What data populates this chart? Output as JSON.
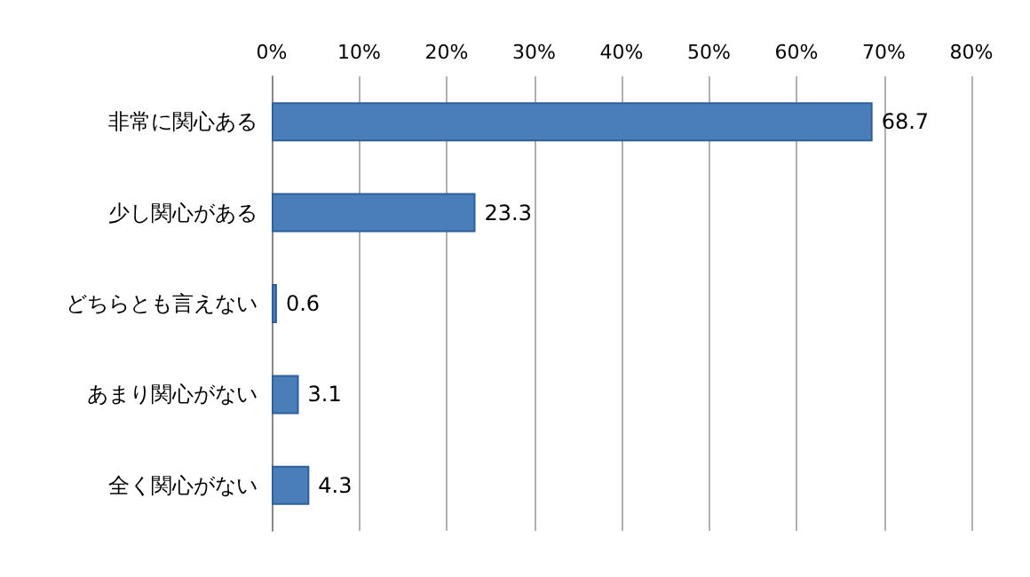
{
  "chart_data": {
    "type": "bar",
    "orientation": "horizontal",
    "categories": [
      "非常に関心ある",
      "少し関心がある",
      "どちらとも言えない",
      "あまり関心がない",
      "全く関心がない"
    ],
    "values": [
      68.7,
      23.3,
      0.6,
      3.1,
      4.3
    ],
    "color": "#4a7ebb",
    "xlim": [
      0,
      80
    ],
    "xticks": [
      {
        "value": 0,
        "label": "0%"
      },
      {
        "value": 10,
        "label": "10%"
      },
      {
        "value": 20,
        "label": "20%"
      },
      {
        "value": 30,
        "label": "30%"
      },
      {
        "value": 40,
        "label": "40%"
      },
      {
        "value": 50,
        "label": "50%"
      },
      {
        "value": 60,
        "label": "60%"
      },
      {
        "value": 70,
        "label": "70%"
      },
      {
        "value": 80,
        "label": "80%"
      }
    ],
    "grid": "x",
    "data_labels": true
  }
}
